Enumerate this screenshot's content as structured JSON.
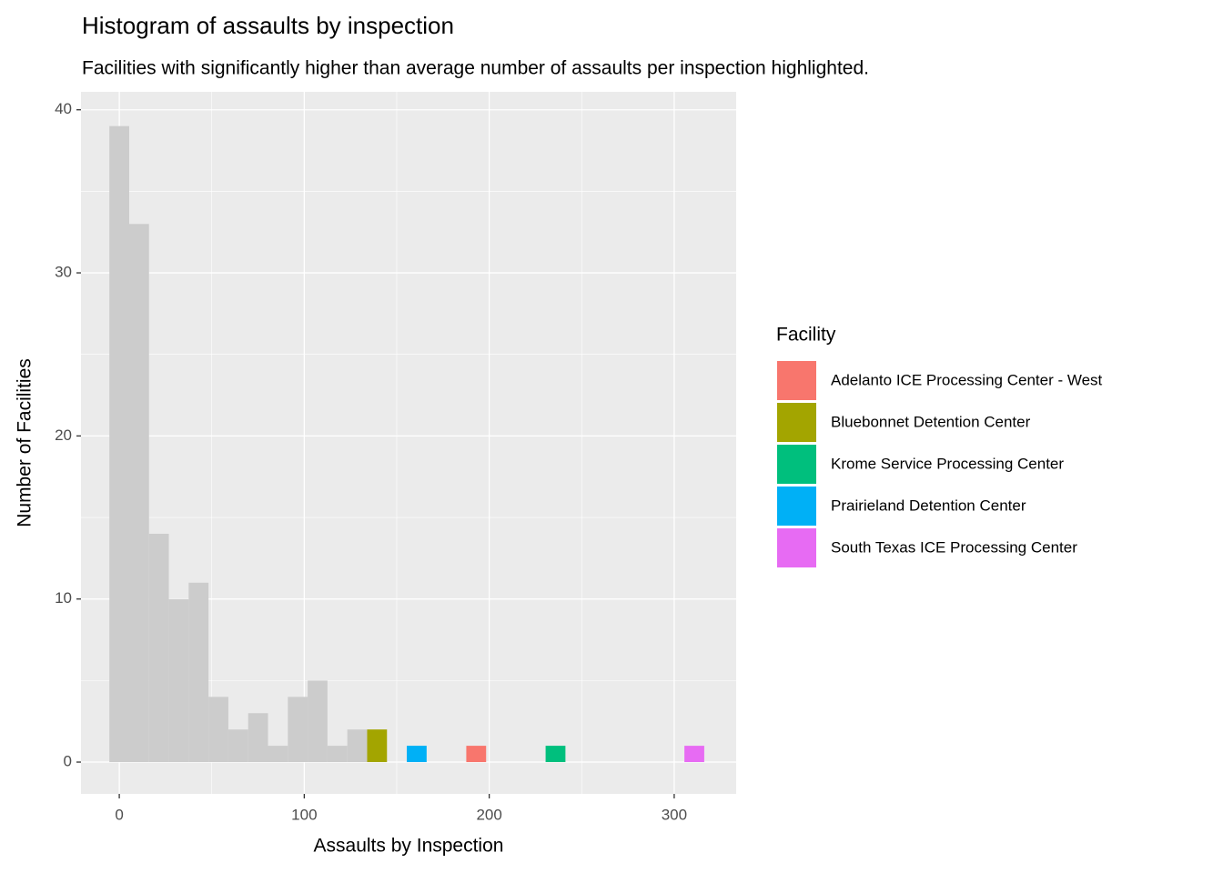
{
  "chart_data": {
    "type": "histogram",
    "title": "Histogram of assaults by inspection",
    "subtitle": "Facilities with significantly higher than average number of assaults per inspection highlighted.",
    "xlabel": "Assaults by Inspection",
    "ylabel": "Number of Facilities",
    "legend_title": "Facility",
    "legend_position": "right",
    "grid": true,
    "bins": [
      -5.36,
      5.36,
      16.08,
      26.8,
      37.52,
      48.24,
      58.96,
      69.68,
      80.4,
      91.12,
      101.84,
      112.56,
      123.28,
      134,
      144.72,
      155.44,
      166.16,
      176.88,
      187.6,
      198.32,
      209.04,
      219.76,
      230.48,
      241.2,
      251.92,
      262.64,
      273.36,
      284.08,
      294.8,
      305.52,
      316.24
    ],
    "values": [
      39,
      33,
      14,
      10,
      11,
      4,
      2,
      3,
      1,
      4,
      5,
      1,
      2,
      0,
      0,
      0,
      0,
      0,
      0,
      0,
      0,
      0,
      0,
      0,
      0,
      0,
      0,
      0,
      0,
      0
    ],
    "color": "#cccccc",
    "series": [
      {
        "name": "Adelanto ICE Processing Center - West",
        "color": "#F8766D",
        "values": [
          0,
          0,
          0,
          0,
          0,
          0,
          0,
          0,
          0,
          0,
          0,
          0,
          0,
          0,
          0,
          0,
          0,
          0,
          1,
          0,
          0,
          0,
          0,
          0,
          0,
          0,
          0,
          0,
          0,
          0
        ]
      },
      {
        "name": "Bluebonnet Detention Center",
        "color": "#A3A500",
        "values": [
          0,
          0,
          0,
          0,
          0,
          0,
          0,
          0,
          0,
          0,
          0,
          0,
          0,
          2,
          0,
          0,
          0,
          0,
          0,
          0,
          0,
          0,
          0,
          0,
          0,
          0,
          0,
          0,
          0,
          0
        ]
      },
      {
        "name": "Krome Service Processing Center",
        "color": "#00BF7D",
        "values": [
          0,
          0,
          0,
          0,
          0,
          0,
          0,
          0,
          0,
          0,
          0,
          0,
          0,
          0,
          0,
          0,
          0,
          0,
          0,
          0,
          0,
          0,
          1,
          0,
          0,
          0,
          0,
          0,
          0,
          0
        ]
      },
      {
        "name": "Prairieland Detention Center",
        "color": "#00B0F6",
        "values": [
          0,
          0,
          0,
          0,
          0,
          0,
          0,
          0,
          0,
          0,
          0,
          0,
          0,
          0,
          0,
          1,
          0,
          0,
          0,
          0,
          0,
          0,
          0,
          0,
          0,
          0,
          0,
          0,
          0,
          0
        ]
      },
      {
        "name": "South Texas ICE Processing Center",
        "color": "#E76BF3",
        "values": [
          0,
          0,
          0,
          0,
          0,
          0,
          0,
          0,
          0,
          0,
          0,
          0,
          0,
          0,
          0,
          0,
          0,
          0,
          0,
          0,
          0,
          0,
          0,
          0,
          0,
          0,
          0,
          0,
          0,
          1
        ]
      }
    ],
    "xlim": [
      -20.7,
      333.5
    ],
    "xticks": [
      0,
      100,
      200,
      300
    ],
    "minor_xticks": [
      50,
      150,
      250
    ],
    "ylim": [
      -1.95,
      41.1
    ],
    "yticks": [
      0,
      10,
      20,
      30,
      40
    ],
    "minor_yticks": [
      5,
      15,
      25,
      35
    ]
  }
}
